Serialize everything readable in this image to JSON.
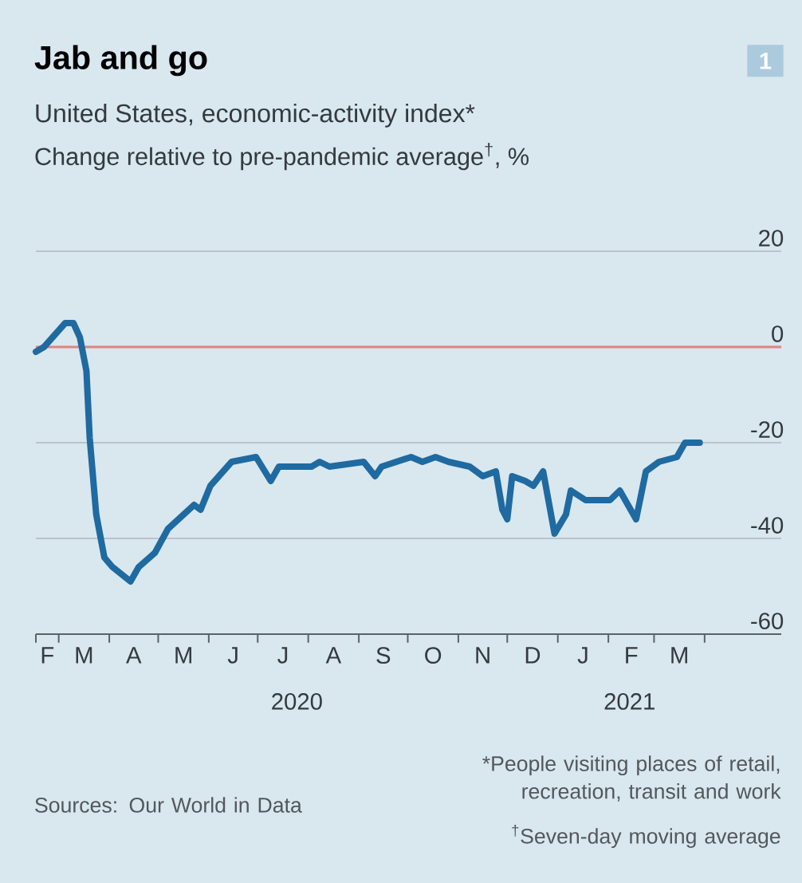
{
  "chart_data": {
    "type": "line",
    "title": "Jab and go",
    "subtitle": "United States, economic-activity index*",
    "ylabel": "Change relative to pre-pandemic average$^{†}$, %",
    "annotations": [
      "1",
      "Sources: Our World in Data",
      "*People visiting places of retail, recreation, transit and work",
      "$^{†}$Seven-day moving average",
      "F",
      "M",
      "A",
      "M",
      "J",
      "J",
      "A",
      "S",
      "O",
      "N",
      "D",
      "J",
      "F",
      "M"
    ],
    "x": [
      "2020-02-16",
      "2020-02-21",
      "2020-03-05",
      "2020-03-10",
      "2020-03-14",
      "2020-03-18",
      "2020-03-20",
      "2020-03-24",
      "2020-03-29",
      "2020-04-03",
      "2020-04-14",
      "2020-04-19",
      "2020-04-29",
      "2020-05-07",
      "2020-05-23",
      "2020-05-27",
      "2020-06-02",
      "2020-06-15",
      "2020-06-30",
      "2020-07-09",
      "2020-07-14",
      "2020-08-03",
      "2020-08-08",
      "2020-08-14",
      "2020-09-04",
      "2020-09-11",
      "2020-09-15",
      "2020-10-03",
      "2020-10-10",
      "2020-10-18",
      "2020-10-26",
      "2020-11-08",
      "2020-11-16",
      "2020-11-24",
      "2020-11-28",
      "2020-12-01",
      "2020-12-04",
      "2020-12-12",
      "2020-12-17",
      "2020-12-23",
      "2020-12-30",
      "2021-01-06",
      "2021-01-09",
      "2021-01-18",
      "2021-02-02",
      "2021-02-08",
      "2021-02-18",
      "2021-02-24",
      "2021-03-04",
      "2021-03-15",
      "2021-03-20",
      "2021-03-29"
    ],
    "series": [
      {
        "color": "#1f6aa0",
        "values": [
          -1,
          0,
          5,
          5,
          2,
          -5,
          -19,
          -35,
          -44,
          -46,
          -49,
          -46,
          -43,
          -38,
          -33,
          -34,
          -29,
          -24,
          -23,
          -28,
          -25,
          -25,
          -24,
          -25,
          -24,
          -27,
          -25,
          -23,
          -24,
          -23,
          -24,
          -25,
          -27,
          -26,
          -34,
          -36,
          -27,
          -28,
          -29,
          -26,
          -39,
          -35,
          -30,
          -32,
          -32,
          -30,
          -36,
          -26,
          -24,
          -23,
          -20,
          -20
        ]
      }
    ],
    "xlim": [
      "2020-02-16",
      "2021-05-18"
    ],
    "ylim": [
      -60,
      20
    ],
    "yticks": [
      -60,
      -40,
      -20,
      0,
      20
    ],
    "xticks": [
      {
        "value": "2020-02-16",
        "label": null
      },
      {
        "value": "2020-03-01",
        "label": null
      },
      {
        "value": "2020-04-01",
        "label": null
      },
      {
        "value": "2020-05-01",
        "label": null
      },
      {
        "value": "2020-06-01",
        "label": null
      },
      {
        "value": "2020-07-01",
        "label": null
      },
      {
        "value": "2020-08-01",
        "label": null
      },
      {
        "value": "2020-09-01",
        "label": null
      },
      {
        "value": "2020-10-01",
        "label": null
      },
      {
        "value": "2020-11-01",
        "label": null
      },
      {
        "value": "2020-12-01",
        "label": null
      },
      {
        "value": "2021-01-01",
        "label": null
      },
      {
        "value": "2021-02-01",
        "label": null
      },
      {
        "value": "2021-03-01",
        "label": null
      },
      {
        "value": "2021-04-01",
        "label": null
      },
      {
        "value": "2020-07-25",
        "label": "2020"
      },
      {
        "value": "2021-02-14",
        "label": "2021"
      }
    ],
    "grid": "y",
    "ref_lines": [
      {
        "axis": "y",
        "value": 0,
        "color": "#e0837f"
      }
    ]
  }
}
